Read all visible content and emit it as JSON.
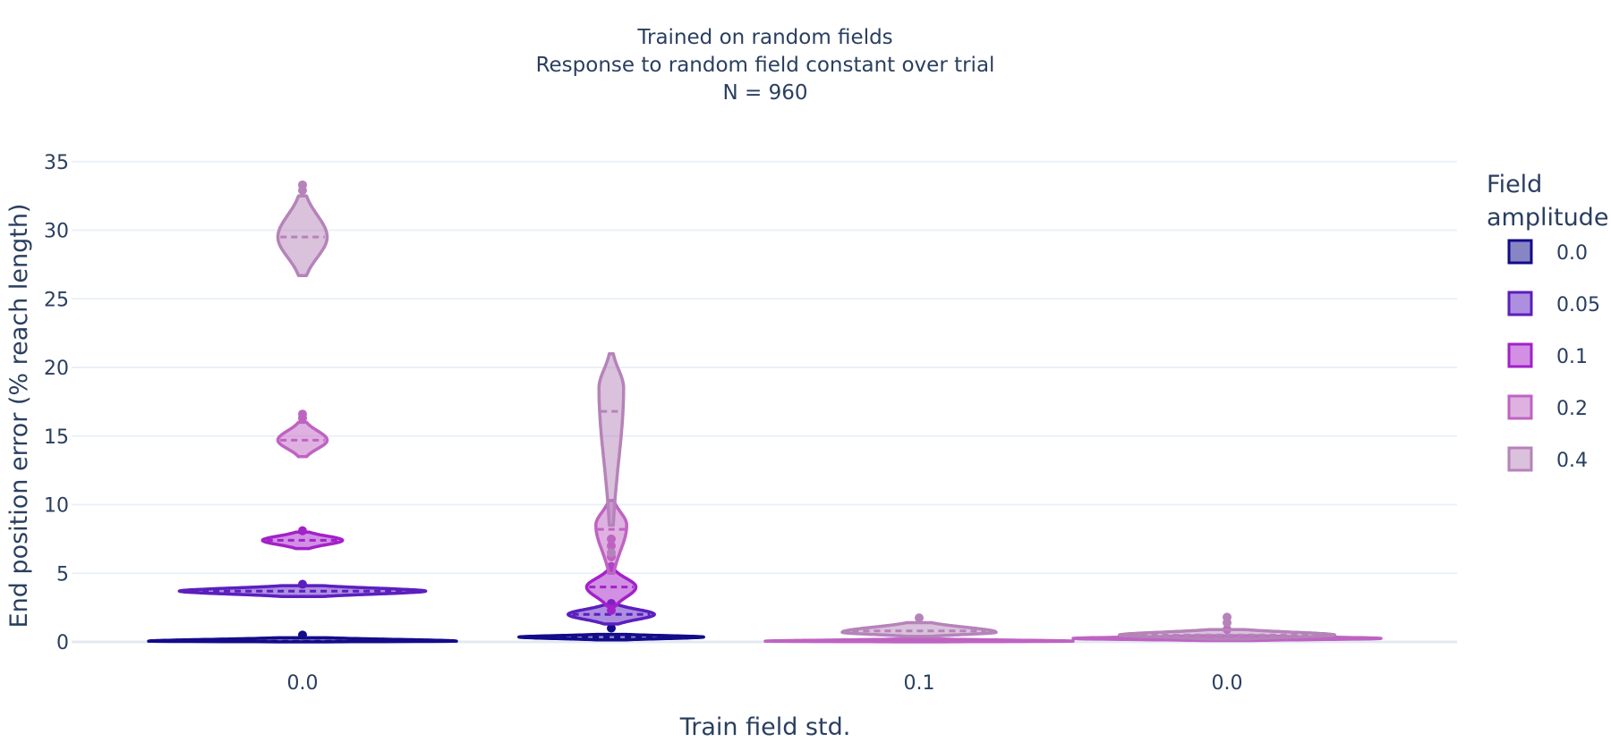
{
  "chart_data": {
    "type": "violin",
    "title_lines": [
      "Trained on random fields",
      "Response to random field constant over trial",
      "N = 960"
    ],
    "xlabel": "Train field std.",
    "ylabel": "End position error (% reach length)",
    "ylim": [
      -0.3,
      37
    ],
    "yticks": [
      0,
      5,
      10,
      15,
      20,
      25,
      30,
      35
    ],
    "grid": true,
    "categories": [
      "0.0",
      "",
      "0.1",
      "0.0"
    ],
    "legend": {
      "title_lines": [
        "Field",
        "amplitude"
      ],
      "placement": "right"
    },
    "series": [
      {
        "name": "0.0",
        "color": "#120c8a",
        "violins": [
          {
            "category": 0,
            "median": 0.05,
            "lo": 0.0,
            "hi": 0.3,
            "dens_center": 0.05,
            "width": 1.0,
            "outliers": [
              0.5
            ]
          },
          {
            "category": 1,
            "median": 0.35,
            "lo": 0.15,
            "hi": 0.55,
            "dens_center": 0.35,
            "width": 0.6,
            "outliers": [
              1.0
            ]
          }
        ]
      },
      {
        "name": "0.05",
        "color": "#5b1fbf",
        "violins": [
          {
            "category": 0,
            "median": 3.7,
            "lo": 3.3,
            "hi": 4.1,
            "dens_center": 3.7,
            "width": 0.8,
            "outliers": [
              4.2
            ]
          },
          {
            "category": 1,
            "median": 2.0,
            "lo": 1.3,
            "hi": 2.7,
            "dens_center": 2.0,
            "width": 0.28,
            "outliers": [
              2.8
            ]
          }
        ]
      },
      {
        "name": "0.1",
        "color": "#a321c8",
        "violins": [
          {
            "category": 0,
            "median": 7.4,
            "lo": 6.8,
            "hi": 8.0,
            "dens_center": 7.4,
            "width": 0.26,
            "outliers": [
              8.1
            ]
          },
          {
            "category": 1,
            "median": 4.0,
            "lo": 2.6,
            "hi": 5.2,
            "dens_center": 4.0,
            "width": 0.16,
            "outliers": [
              2.3,
              5.5
            ]
          }
        ]
      },
      {
        "name": "0.2",
        "color": "#bf63c3",
        "violins": [
          {
            "category": 0,
            "median": 14.7,
            "lo": 13.5,
            "hi": 16.0,
            "dens_center": 14.7,
            "width": 0.16,
            "outliers": [
              16.3,
              16.6
            ]
          },
          {
            "category": 1,
            "median": 8.2,
            "lo": 5.0,
            "hi": 10.3,
            "dens_center": 8.5,
            "width": 0.1,
            "outliers": [
              6.2,
              7.0,
              7.5
            ]
          },
          {
            "category": 2,
            "median": 0.05,
            "lo": 0.0,
            "hi": 0.2,
            "dens_center": 0.05,
            "width": 1.0,
            "outliers": []
          },
          {
            "category": 3,
            "median": 0.25,
            "lo": 0.1,
            "hi": 0.45,
            "dens_center": 0.25,
            "width": 1.0,
            "outliers": [
              0.9
            ]
          }
        ]
      },
      {
        "name": "0.4",
        "color": "#b583b9",
        "violins": [
          {
            "category": 0,
            "median": 29.5,
            "lo": 26.7,
            "hi": 32.5,
            "dens_center": 29.5,
            "width": 0.16,
            "outliers": [
              32.9,
              33.3
            ]
          },
          {
            "category": 1,
            "median": 16.8,
            "lo": 8.5,
            "hi": 21.0,
            "dens_center": 18.5,
            "width": 0.08,
            "outliers": [
              6.5
            ]
          },
          {
            "category": 2,
            "median": 0.8,
            "lo": 0.4,
            "hi": 1.4,
            "dens_center": 0.7,
            "width": 0.5,
            "outliers": [
              1.75
            ]
          },
          {
            "category": 3,
            "median": 0.5,
            "lo": 0.2,
            "hi": 0.9,
            "dens_center": 0.5,
            "width": 0.7,
            "outliers": [
              1.4,
              1.8
            ]
          }
        ]
      }
    ]
  }
}
